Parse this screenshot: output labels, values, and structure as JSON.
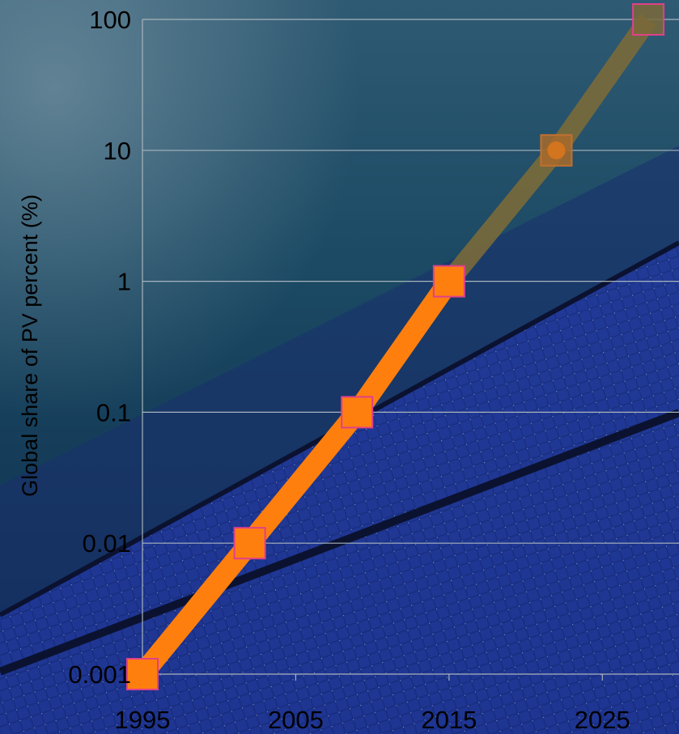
{
  "chart_data": {
    "type": "line",
    "ylabel": "Global share of PV percent (%)",
    "xlabel": "",
    "title": "",
    "x_ticks": [
      "1995",
      "2005",
      "2015",
      "2025"
    ],
    "y_ticks": [
      "0.001",
      "0.01",
      "0.1",
      "1",
      "10",
      "100"
    ],
    "xlim": [
      1995,
      2030
    ],
    "ylim": [
      0.001,
      100
    ],
    "y_scale": "log",
    "grid": "horizontal",
    "legend": "none",
    "series": [
      {
        "style": "actual",
        "color": "#ff7f0e",
        "x": [
          1995,
          2002,
          2009,
          2015
        ],
        "y": [
          0.001,
          0.01,
          0.1,
          1
        ]
      },
      {
        "style": "projected",
        "color": "#7a6a3a",
        "x": [
          2015,
          2022,
          2028
        ],
        "y": [
          1,
          10,
          100
        ]
      }
    ],
    "marker_color": "#ff7f0e",
    "marker_border_color": "#e0408a"
  }
}
